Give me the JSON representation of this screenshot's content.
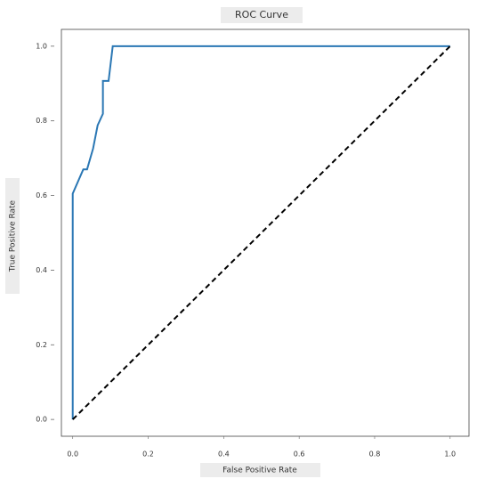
{
  "chart_data": {
    "type": "line",
    "title": "ROC Curve",
    "x_label": "False Positive Rate",
    "y_label": "True Positive Rate",
    "xlim": [
      -0.03,
      1.05
    ],
    "ylim": [
      -0.045,
      1.045
    ],
    "xticks": [
      {
        "value": 0,
        "label": "0.0"
      },
      0.2,
      0.4,
      0.6,
      0.8,
      {
        "value": 1,
        "label": "1.0"
      }
    ],
    "yticks": [
      {
        "value": 0,
        "label": "0.0"
      },
      0.2,
      0.4,
      0.6,
      0.8,
      {
        "value": 1,
        "label": "1.0"
      }
    ],
    "series": [
      {
        "color": "#2a77b4",
        "dashed": false,
        "x": [
          0,
          0,
          0.028,
          0.038,
          0.054,
          0.066,
          0.08,
          0.08,
          0.095,
          0.106,
          1
        ],
        "values": [
          0,
          0.605,
          0.67,
          0.67,
          0.726,
          0.788,
          0.819,
          0.907,
          0.907,
          1,
          1
        ]
      },
      {
        "color": "#000000",
        "dashed": true,
        "x": [
          0,
          1
        ],
        "values": [
          0,
          1
        ]
      }
    ]
  }
}
